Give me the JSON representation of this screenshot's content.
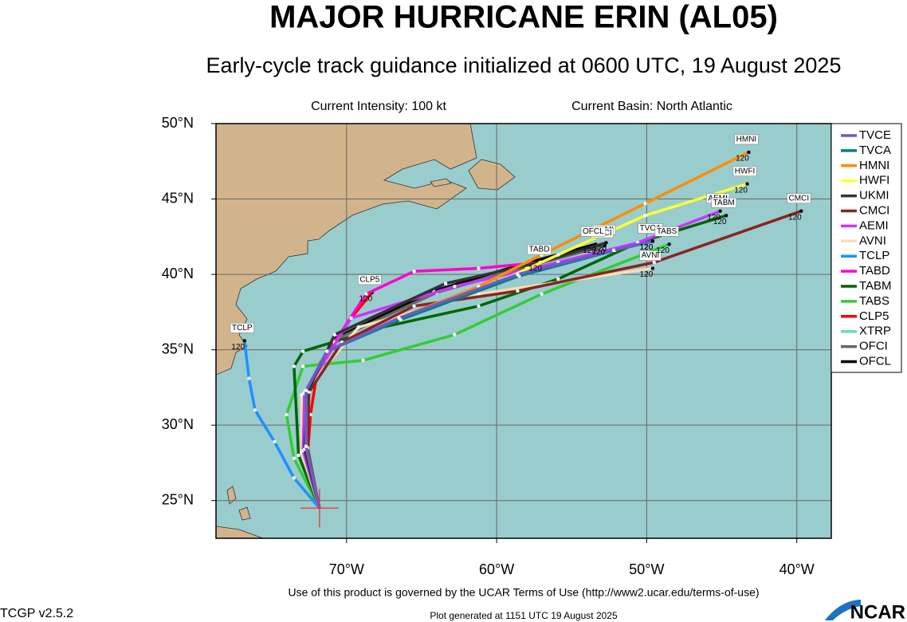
{
  "header": {
    "title": "MAJOR HURRICANE ERIN (AL05)",
    "subtitle": "Early-cycle track guidance initialized at 0600 UTC, 19 August 2025"
  },
  "chart_data": {
    "type": "track-map",
    "info_left": "Current Intensity: 100 kt",
    "info_right": "Current Basin: North Atlantic",
    "xlim": [
      -78.7,
      -37.7
    ],
    "ylim": [
      22.5,
      50
    ],
    "xticks": [
      {
        "value": -70,
        "label": "70°W"
      },
      {
        "value": -60,
        "label": "60°W"
      },
      {
        "value": -50,
        "label": "50°W"
      },
      {
        "value": -40,
        "label": "40°W"
      }
    ],
    "yticks": [
      {
        "value": 25,
        "label": "25°N"
      },
      {
        "value": 30,
        "label": "30°N"
      },
      {
        "value": 35,
        "label": "35°N"
      },
      {
        "value": 40,
        "label": "40°N"
      },
      {
        "value": 45,
        "label": "45°N"
      },
      {
        "value": 50,
        "label": "50°N"
      }
    ],
    "grid": true,
    "legend": "outside-right",
    "start": {
      "lon": -71.8,
      "lat": 24.5
    },
    "series": [
      {
        "name": "TVCE",
        "color": "#6a5acd",
        "lon": [
          -71.8,
          -72.7,
          -72.7,
          -71.3,
          -66.5,
          -58.6,
          -52.2,
          -49.6
        ],
        "lat": [
          24.5,
          28.6,
          32.3,
          34.9,
          37.1,
          40.0,
          41.6,
          42.2
        ],
        "end_label": "120"
      },
      {
        "name": "TVCA",
        "color": "#008080",
        "lon": [
          -71.8,
          -72.7,
          -72.7,
          -71.3,
          -66.4,
          -58.5,
          -52.1,
          -49.6
        ],
        "lat": [
          24.5,
          28.6,
          32.3,
          34.9,
          37.0,
          39.9,
          41.6,
          42.2
        ],
        "end_label": "120"
      },
      {
        "name": "HMNI",
        "color": "#ff8c00",
        "lon": [
          -71.8,
          -72.7,
          -72.7,
          -71.3,
          -66.5,
          -61.2,
          -57.0,
          -50.1,
          -43.2
        ],
        "lat": [
          24.5,
          28.6,
          32.3,
          34.9,
          37.1,
          39.2,
          41.3,
          44.7,
          48.1
        ],
        "end_label": "120"
      },
      {
        "name": "HWFI",
        "color": "#ffff33",
        "lon": [
          -71.8,
          -72.7,
          -72.7,
          -71.3,
          -66.5,
          -61.2,
          -55.9,
          -50.1,
          -43.3
        ],
        "lat": [
          24.5,
          28.6,
          32.3,
          34.9,
          37.0,
          38.9,
          41.3,
          43.9,
          46.0
        ],
        "end_label": "120"
      },
      {
        "name": "UKMI",
        "color": "#333333",
        "lon": [
          -71.8,
          -72.8,
          -72.6,
          -70.8,
          -63.4,
          -57.1,
          -52.7
        ],
        "lat": [
          24.5,
          28.4,
          32.2,
          36.0,
          39.4,
          40.8,
          42.1
        ],
        "end_label": "120"
      },
      {
        "name": "CMCI",
        "color": "#8b2323",
        "lon": [
          -71.8,
          -72.6,
          -72.5,
          -70.3,
          -65.5,
          -58.6,
          -49.5,
          -39.7
        ],
        "lat": [
          24.5,
          28.5,
          32.2,
          35.5,
          37.9,
          38.9,
          40.8,
          44.2
        ],
        "end_label": "120"
      },
      {
        "name": "AEMI",
        "color": "#cc33ff",
        "lon": [
          -71.8,
          -72.9,
          -72.8,
          -69.7,
          -62.8,
          -55.9,
          -50.6,
          -45.1
        ],
        "lat": [
          24.5,
          28.3,
          32.1,
          37.1,
          39.2,
          40.8,
          42.1,
          44.2
        ],
        "end_label": "120"
      },
      {
        "name": "AVNI",
        "color": "#f5deb3",
        "lon": [
          -71.8,
          -73.0,
          -73.0,
          -69.2,
          -61.2,
          -56.4,
          -49.6
        ],
        "lat": [
          24.5,
          28.2,
          32.0,
          36.5,
          38.7,
          39.4,
          40.4
        ],
        "end_label": "120"
      },
      {
        "name": "TCLP",
        "color": "#1e90ff",
        "lon": [
          -71.8,
          -73.5,
          -74.8,
          -76.1,
          -76.5,
          -76.8
        ],
        "lat": [
          24.5,
          26.5,
          28.9,
          31.0,
          33.1,
          35.6
        ],
        "end_label": "120"
      },
      {
        "name": "TABD",
        "color": "#ff00cc",
        "lon": [
          -71.8,
          -72.8,
          -72.9,
          -70.8,
          -68.7,
          -65.5,
          -61.2,
          -57.0
        ],
        "lat": [
          24.5,
          28.4,
          32.0,
          35.5,
          38.7,
          40.2,
          40.4,
          40.8
        ],
        "end_label": "120"
      },
      {
        "name": "TABM",
        "color": "#006400",
        "lon": [
          -71.8,
          -73.2,
          -73.5,
          -72.9,
          -67.6,
          -61.2,
          -55.9,
          -50.6,
          -44.7
        ],
        "lat": [
          24.5,
          28.0,
          33.9,
          34.9,
          36.5,
          37.9,
          39.7,
          42.1,
          43.9
        ],
        "end_label": "120"
      },
      {
        "name": "TABS",
        "color": "#32cd32",
        "lon": [
          -71.8,
          -73.5,
          -74.0,
          -72.9,
          -68.9,
          -62.8,
          -57.0,
          -48.5
        ],
        "lat": [
          24.5,
          27.8,
          30.7,
          33.9,
          34.3,
          36.0,
          38.7,
          42.0
        ],
        "end_label": "120"
      },
      {
        "name": "CLP5",
        "color": "#ff0000",
        "lon": [
          -71.8,
          -72.6,
          -72.4,
          -71.9,
          -69.7,
          -68.3
        ],
        "lat": [
          24.5,
          28.0,
          30.7,
          33.9,
          37.1,
          38.8
        ],
        "end_label": "120"
      },
      {
        "name": "XTRP",
        "color": "#66e0b0",
        "lon": [
          -71.8,
          -72.3,
          -72.6
        ],
        "lat": [
          24.5,
          26.5,
          28.5
        ]
      },
      {
        "name": "OFCI",
        "color": "#666666",
        "lon": [
          -71.8,
          -72.7,
          -72.6,
          -70.9,
          -64.0,
          -58.0,
          -52.8
        ],
        "lat": [
          24.5,
          28.5,
          32.3,
          35.6,
          38.8,
          40.5,
          41.9
        ],
        "end_label": "120"
      },
      {
        "name": "OFCL",
        "color": "#000000",
        "lon": [
          -71.8,
          -72.7,
          -72.6,
          -70.9,
          -64.2,
          -58.2,
          -53.4
        ],
        "lat": [
          24.5,
          28.5,
          32.3,
          35.7,
          38.9,
          40.7,
          42.0
        ],
        "end_label": "120"
      }
    ]
  },
  "footer": {
    "terms": "Use of this product is governed by the UCAR Terms of Use (http://www2.ucar.edu/terms-of-use)",
    "version": "TCGP v2.5.2",
    "generated": "Plot generated at 1151 UTC   19 August 2025",
    "logo": "NCAR"
  }
}
